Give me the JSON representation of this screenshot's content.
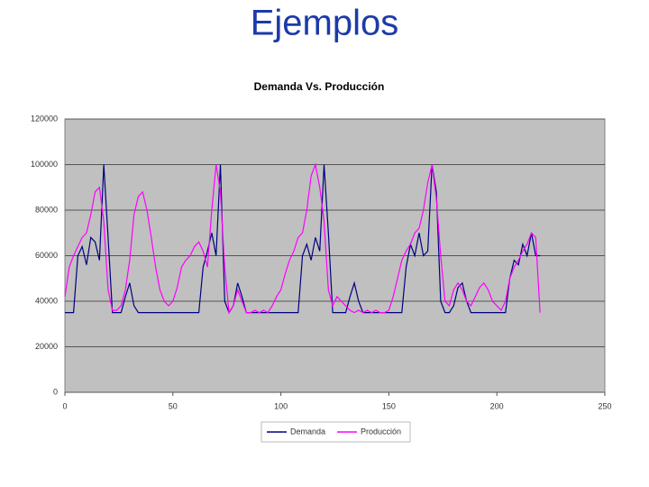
{
  "slide_title": "Ejemplos",
  "chart_data": {
    "type": "line",
    "title": "Demanda  Vs. Producción",
    "x": [
      0,
      2,
      4,
      6,
      8,
      10,
      12,
      14,
      16,
      18,
      20,
      22,
      24,
      26,
      28,
      30,
      32,
      34,
      36,
      38,
      40,
      42,
      44,
      46,
      48,
      50,
      52,
      54,
      56,
      58,
      60,
      62,
      64,
      66,
      68,
      70,
      72,
      74,
      76,
      78,
      80,
      82,
      84,
      86,
      88,
      90,
      92,
      94,
      96,
      98,
      100,
      102,
      104,
      106,
      108,
      110,
      112,
      114,
      116,
      118,
      120,
      122,
      124,
      126,
      128,
      130,
      132,
      134,
      136,
      138,
      140,
      142,
      144,
      146,
      148,
      150,
      152,
      154,
      156,
      158,
      160,
      162,
      164,
      166,
      168,
      170,
      172,
      174,
      176,
      178,
      180,
      182,
      184,
      186,
      188,
      190,
      192,
      194,
      196,
      198,
      200,
      202,
      204,
      206,
      208,
      210,
      212,
      214,
      216,
      218,
      220
    ],
    "series": [
      {
        "name": "Demanda",
        "color": "#000080",
        "values": [
          35000,
          35000,
          35000,
          60000,
          64000,
          56000,
          68000,
          66000,
          58000,
          100000,
          68000,
          35000,
          35000,
          35000,
          42000,
          48000,
          38000,
          35000,
          35000,
          35000,
          35000,
          35000,
          35000,
          35000,
          35000,
          35000,
          35000,
          35000,
          35000,
          35000,
          35000,
          35000,
          55000,
          62000,
          70000,
          60000,
          100000,
          40000,
          35000,
          38000,
          48000,
          42000,
          35000,
          35000,
          35000,
          35000,
          35000,
          35000,
          35000,
          35000,
          35000,
          35000,
          35000,
          35000,
          35000,
          60000,
          65000,
          58000,
          68000,
          62000,
          100000,
          70000,
          35000,
          35000,
          35000,
          35000,
          42000,
          48000,
          40000,
          35000,
          35000,
          35000,
          35000,
          35000,
          35000,
          35000,
          35000,
          35000,
          35000,
          55000,
          65000,
          60000,
          70000,
          60000,
          62000,
          100000,
          88000,
          40000,
          35000,
          35000,
          38000,
          46000,
          48000,
          40000,
          35000,
          35000,
          35000,
          35000,
          35000,
          35000,
          35000,
          35000,
          35000,
          50000,
          58000,
          56000,
          65000,
          60000,
          70000,
          60000,
          60000
        ]
      },
      {
        "name": "Producción",
        "color": "#ff00ff",
        "values": [
          42000,
          55000,
          60000,
          64000,
          68000,
          70000,
          78000,
          88000,
          90000,
          75000,
          45000,
          36000,
          36000,
          38000,
          45000,
          58000,
          78000,
          86000,
          88000,
          80000,
          68000,
          55000,
          45000,
          40000,
          38000,
          40000,
          46000,
          55000,
          58000,
          60000,
          64000,
          66000,
          62000,
          55000,
          80000,
          100000,
          88000,
          55000,
          35000,
          38000,
          45000,
          40000,
          35000,
          35000,
          36000,
          35000,
          36000,
          35000,
          38000,
          42000,
          45000,
          52000,
          58000,
          62000,
          68000,
          70000,
          80000,
          95000,
          100000,
          90000,
          75000,
          45000,
          38000,
          42000,
          40000,
          38000,
          36000,
          35000,
          36000,
          35000,
          36000,
          35000,
          36000,
          35000,
          35000,
          36000,
          42000,
          50000,
          58000,
          62000,
          65000,
          70000,
          72000,
          80000,
          92000,
          100000,
          85000,
          60000,
          40000,
          38000,
          45000,
          48000,
          45000,
          40000,
          38000,
          42000,
          46000,
          48000,
          45000,
          40000,
          38000,
          36000,
          40000,
          50000,
          55000,
          58000,
          62000,
          65000,
          70000,
          68000,
          35000
        ]
      }
    ],
    "xlim": [
      0,
      250
    ],
    "xticks": [
      0,
      50,
      100,
      150,
      200,
      250
    ],
    "ylim": [
      0,
      120000
    ],
    "yticks": [
      0,
      20000,
      40000,
      60000,
      80000,
      100000,
      120000
    ],
    "grid": true,
    "plot_background": "#c0c0c0",
    "legend": "bottom"
  }
}
